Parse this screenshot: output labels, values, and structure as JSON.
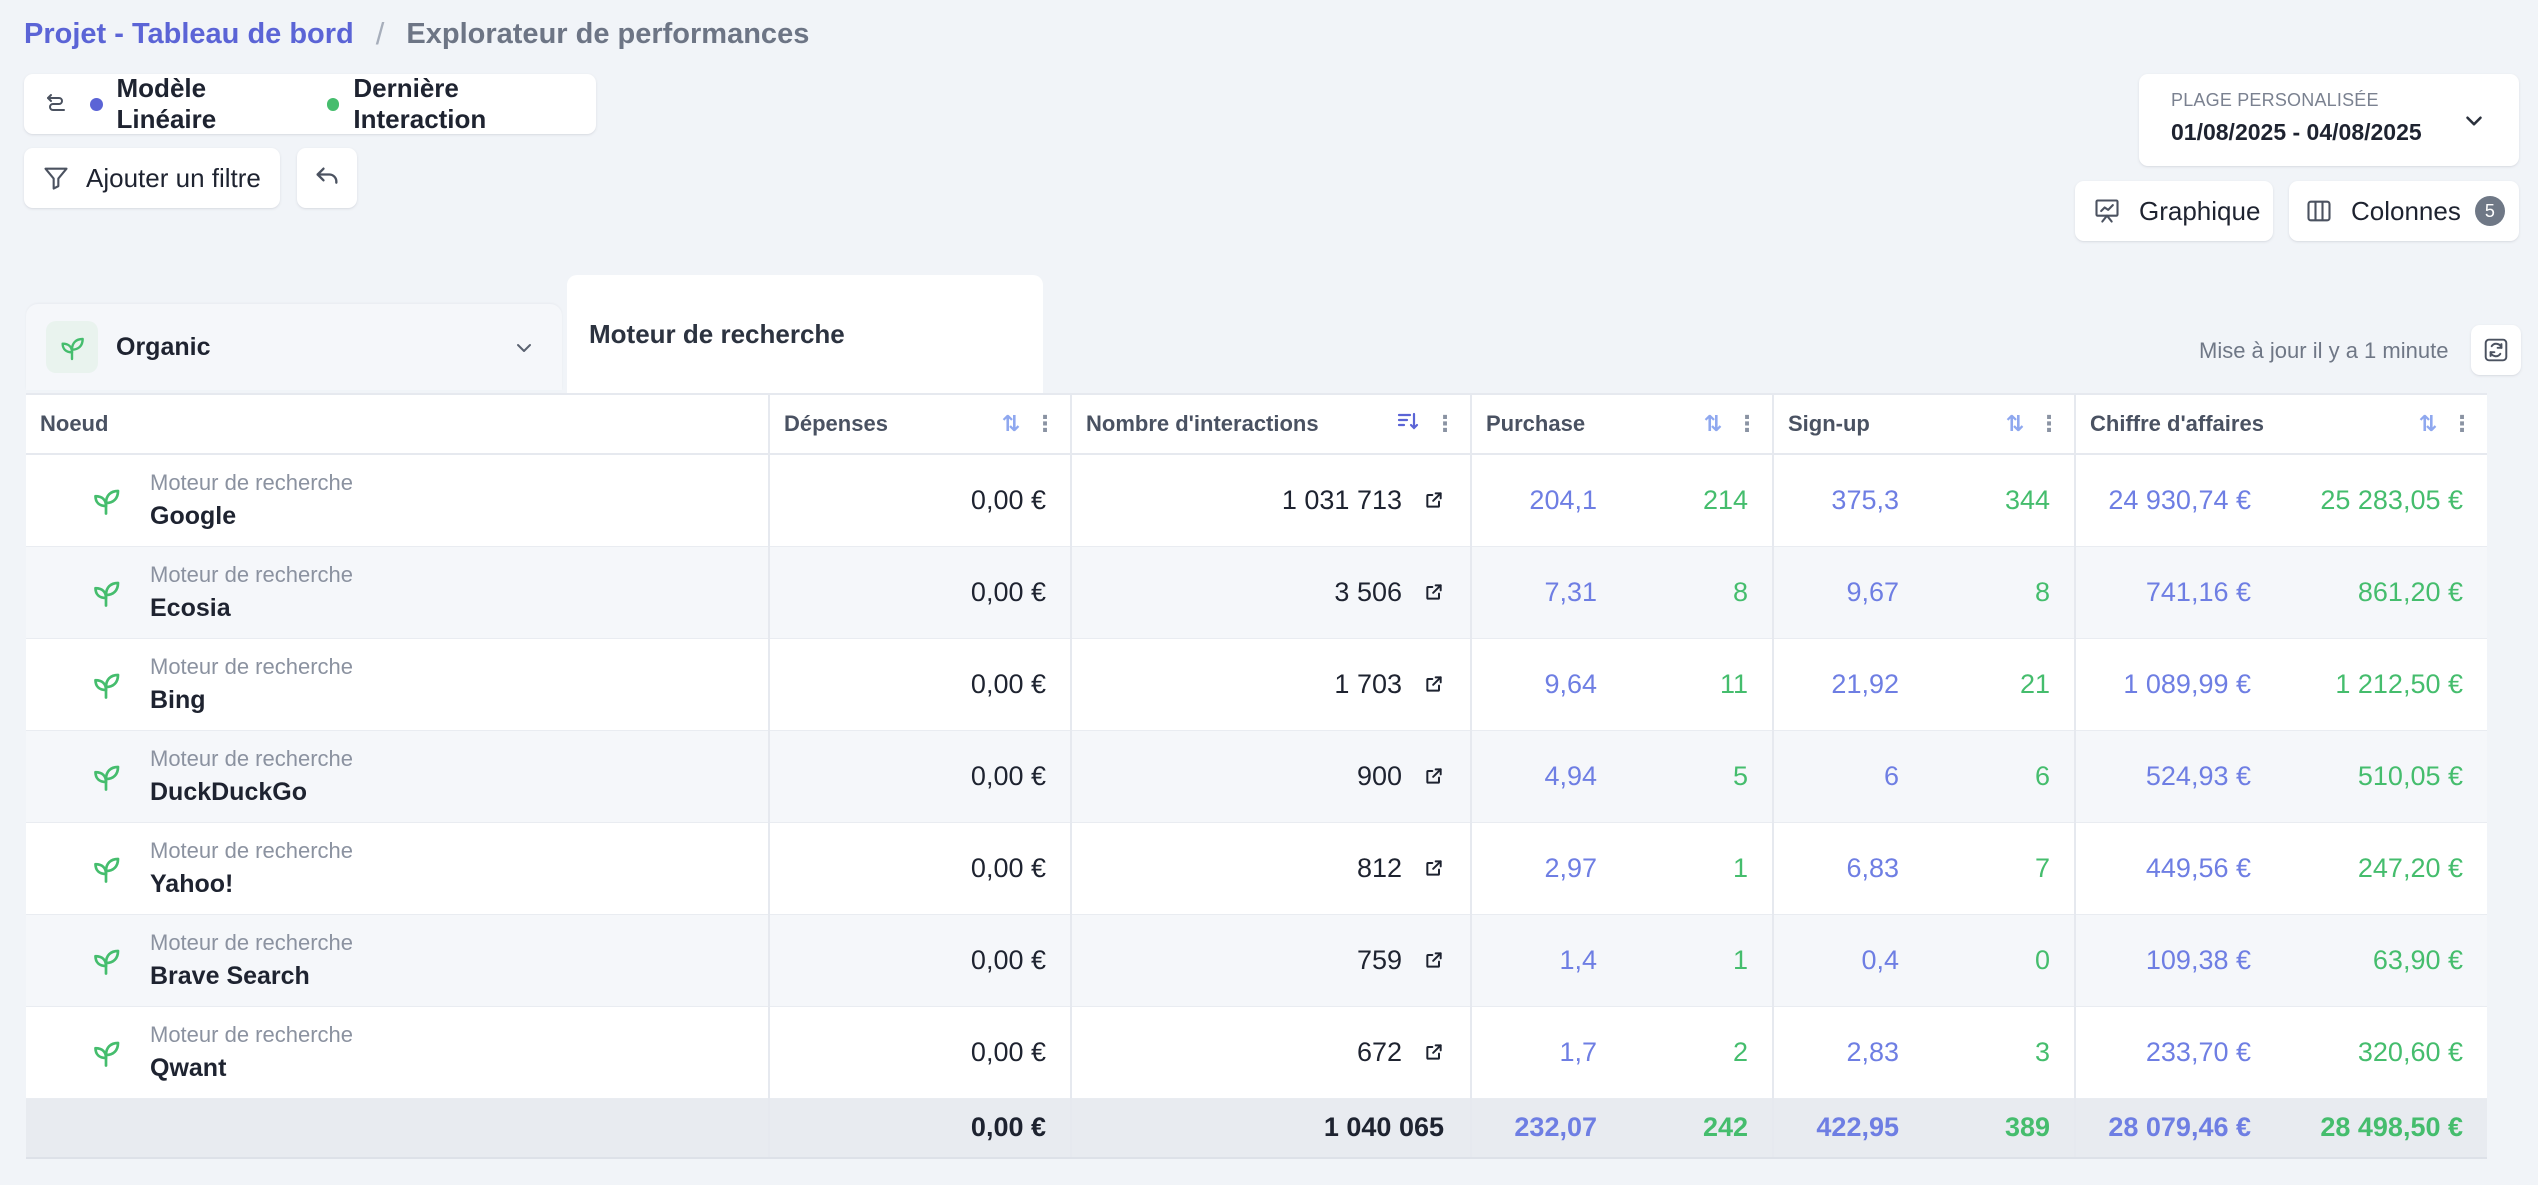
{
  "breadcrumb": {
    "project": "Projet - Tableau de bord",
    "separator": "/",
    "current": "Explorateur de performances"
  },
  "models": {
    "model1": "Modèle Linéaire",
    "model1_color": "#5b64d6",
    "model2": "Dernière Interaction",
    "model2_color": "#45bd6d"
  },
  "toolbar": {
    "add_filter": "Ajouter un filtre",
    "chart": "Graphique",
    "columns": "Colonnes",
    "columns_count": "5"
  },
  "date_range": {
    "label": "PLAGE PERSONALISÉE",
    "value": "01/08/2025 - 04/08/2025"
  },
  "group": {
    "name": "Organic",
    "sub_tab": "Moteur de recherche"
  },
  "status": {
    "updated": "Mise à jour il y a 1 minute"
  },
  "table": {
    "headers": {
      "node": "Noeud",
      "spend": "Dépenses",
      "interactions": "Nombre d'interactions",
      "purchase": "Purchase",
      "signup": "Sign-up",
      "revenue": "Chiffre d'affaires"
    },
    "rows": [
      {
        "type": "Moteur de recherche",
        "name": "Google",
        "spend": "0,00 €",
        "interactions": "1 031 713",
        "purchase_lin": "204,1",
        "purchase_last": "214",
        "signup_lin": "375,3",
        "signup_last": "344",
        "revenue_lin": "24 930,74 €",
        "revenue_last": "25 283,05 €"
      },
      {
        "type": "Moteur de recherche",
        "name": "Ecosia",
        "spend": "0,00 €",
        "interactions": "3 506",
        "purchase_lin": "7,31",
        "purchase_last": "8",
        "signup_lin": "9,67",
        "signup_last": "8",
        "revenue_lin": "741,16 €",
        "revenue_last": "861,20 €"
      },
      {
        "type": "Moteur de recherche",
        "name": "Bing",
        "spend": "0,00 €",
        "interactions": "1 703",
        "purchase_lin": "9,64",
        "purchase_last": "11",
        "signup_lin": "21,92",
        "signup_last": "21",
        "revenue_lin": "1 089,99 €",
        "revenue_last": "1 212,50 €"
      },
      {
        "type": "Moteur de recherche",
        "name": "DuckDuckGo",
        "spend": "0,00 €",
        "interactions": "900",
        "purchase_lin": "4,94",
        "purchase_last": "5",
        "signup_lin": "6",
        "signup_last": "6",
        "revenue_lin": "524,93 €",
        "revenue_last": "510,05 €"
      },
      {
        "type": "Moteur de recherche",
        "name": "Yahoo!",
        "spend": "0,00 €",
        "interactions": "812",
        "purchase_lin": "2,97",
        "purchase_last": "1",
        "signup_lin": "6,83",
        "signup_last": "7",
        "revenue_lin": "449,56 €",
        "revenue_last": "247,20 €"
      },
      {
        "type": "Moteur de recherche",
        "name": "Brave Search",
        "spend": "0,00 €",
        "interactions": "759",
        "purchase_lin": "1,4",
        "purchase_last": "1",
        "signup_lin": "0,4",
        "signup_last": "0",
        "revenue_lin": "109,38 €",
        "revenue_last": "63,90 €"
      },
      {
        "type": "Moteur de recherche",
        "name": "Qwant",
        "spend": "0,00 €",
        "interactions": "672",
        "purchase_lin": "1,7",
        "purchase_last": "2",
        "signup_lin": "2,83",
        "signup_last": "3",
        "revenue_lin": "233,70 €",
        "revenue_last": "320,60 €"
      }
    ],
    "totals": {
      "spend": "0,00 €",
      "interactions": "1 040 065",
      "purchase_lin": "232,07",
      "purchase_last": "242",
      "signup_lin": "422,95",
      "signup_last": "389",
      "revenue_lin": "28 079,46 €",
      "revenue_last": "28 498,50 €"
    }
  },
  "icons": {
    "models": "swap-icon",
    "filter": "filter-icon",
    "undo": "undo-icon",
    "chart": "chart-icon",
    "columns": "columns-icon",
    "refresh": "refresh-icon",
    "leaf": "leaf-icon",
    "external": "external-link-icon"
  }
}
